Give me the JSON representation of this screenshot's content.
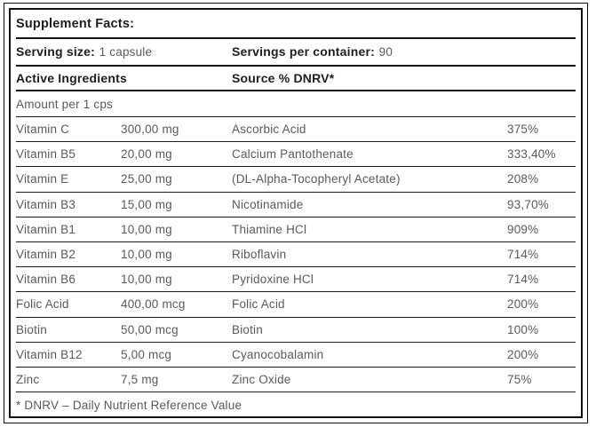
{
  "panel": {
    "title": "Supplement Facts:",
    "serving": {
      "size_label": "Serving size:",
      "size_value": "1 capsule",
      "container_label": "Servings per container:",
      "container_value": "90"
    },
    "column_headers": {
      "active_ingredients": "Active Ingredients",
      "source": "Source % DNRV*"
    },
    "amount_header": "Amount per 1 cps",
    "rows": [
      {
        "name": "Vitamin C",
        "amount": "300,00 mg",
        "source": "Ascorbic Acid",
        "dnrv": "375%"
      },
      {
        "name": "Vitamin B5",
        "amount": "20,00 mg",
        "source": "Calcium Pantothenate",
        "dnrv": "333,40%"
      },
      {
        "name": "Vitamin E",
        "amount": "25,00 mg",
        "source": "(DL-Alpha-Tocopheryl Acetate)",
        "dnrv": "208%"
      },
      {
        "name": "Vitamin B3",
        "amount": "15,00 mg",
        "source": "Nicotinamide",
        "dnrv": "93,70%"
      },
      {
        "name": "Vitamin B1",
        "amount": "10,00 mg",
        "source": "Thiamine HCl",
        "dnrv": "909%"
      },
      {
        "name": "Vitamin B2",
        "amount": "10,00 mg",
        "source": "Riboflavin",
        "dnrv": "714%"
      },
      {
        "name": "Vitamin B6",
        "amount": "10,00 mg",
        "source": "Pyridoxine HCl",
        "dnrv": "714%"
      },
      {
        "name": "Folic Acid",
        "amount": "400,00 mcg",
        "source": "Folic Acid",
        "dnrv": "200%"
      },
      {
        "name": "Biotin",
        "amount": "50,00 mcg",
        "source": "Biotin",
        "dnrv": "100%"
      },
      {
        "name": "Vitamin B12",
        "amount": "5,00 mcg",
        "source": "Cyanocobalamin",
        "dnrv": "200%"
      },
      {
        "name": "Zinc",
        "amount": "7,5 mg",
        "source": "Zinc Oxide",
        "dnrv": "75%"
      }
    ],
    "footnote": "* DNRV – Daily Nutrient Reference Value",
    "colors": {
      "text_dark": "#1e1e1e",
      "text_gray": "#595a5c",
      "border": "#141414"
    }
  }
}
